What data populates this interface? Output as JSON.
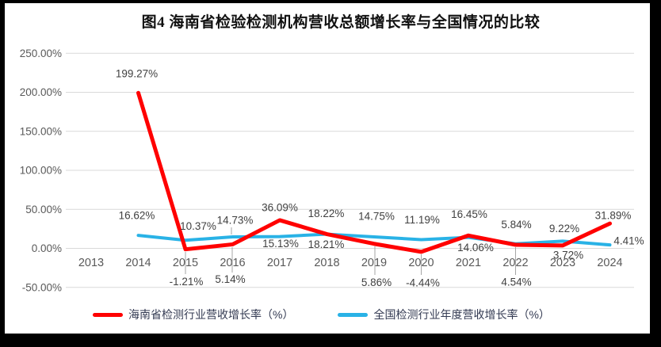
{
  "figure": {
    "title": "图4 海南省检验检测机构营收总额增长率与全国情况的比较"
  },
  "colors": {
    "hainan_line": "#FF0000",
    "national_line": "#29B2E6",
    "gridline": "#D9D9D9",
    "leader_line": "#A6A6A6",
    "data_label": "#404040",
    "axis_label": "#595959",
    "legend_text": "#333A52",
    "title_text": "#111111",
    "frame": "#000000",
    "background": "#FFFFFF"
  },
  "legend": {
    "items": [
      {
        "key": "hainan",
        "label": "海南省检测行业营收增长率（%）",
        "color": "#FF0000"
      },
      {
        "key": "national",
        "label": "全国检测行业年度营收增长率（%）",
        "color": "#29B2E6"
      }
    ]
  },
  "chart_data": {
    "type": "line",
    "title": "图4 海南省检验检测机构营收总额增长率与全国情况的比较",
    "categories": [
      "2013",
      "2014",
      "2015",
      "2016",
      "2017",
      "2018",
      "2019",
      "2020",
      "2021",
      "2022",
      "2023",
      "2024"
    ],
    "series": [
      {
        "name": "海南省检测行业营收增长率（%）",
        "key": "hainan",
        "color": "#FF0000",
        "values": [
          null,
          199.27,
          -1.21,
          5.14,
          36.09,
          18.22,
          5.86,
          -4.44,
          16.45,
          4.54,
          3.72,
          31.89
        ]
      },
      {
        "name": "全国检测行业年度营收增长率（%）",
        "key": "national",
        "color": "#29B2E6",
        "values": [
          null,
          16.62,
          10.37,
          14.73,
          15.13,
          18.21,
          14.75,
          11.19,
          14.06,
          5.84,
          9.22,
          4.41
        ]
      }
    ],
    "xlabel": "",
    "ylabel": "",
    "ylim": [
      -50,
      250
    ],
    "yticks": [
      250,
      200,
      150,
      100,
      50,
      0,
      -50
    ],
    "ytick_labels": [
      "250.00%",
      "200.00%",
      "150.00%",
      "100.00%",
      "50.00%",
      "0.00%",
      "-50.00%"
    ],
    "grid": true,
    "data_labels": true,
    "legend_position": "bottom"
  }
}
